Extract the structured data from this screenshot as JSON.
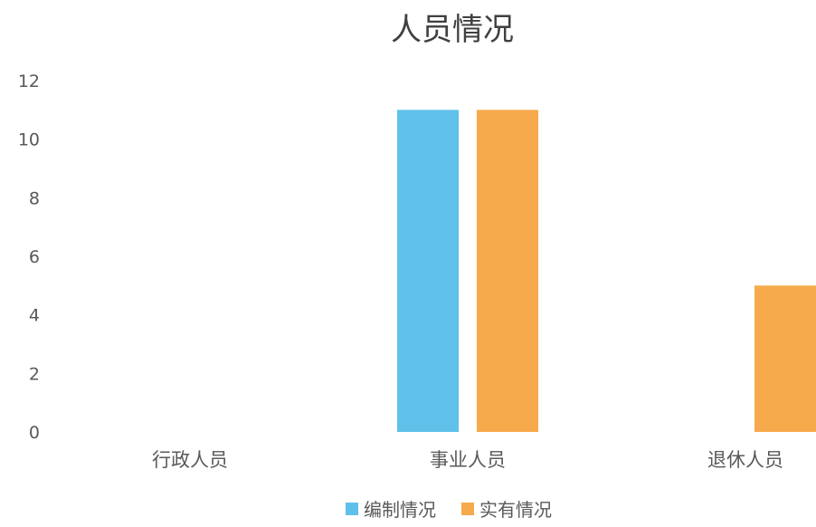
{
  "chart_data": {
    "type": "bar",
    "title": "人员情况",
    "categories": [
      "行政人员",
      "事业人员",
      "退休人员"
    ],
    "series": [
      {
        "name": "编制情况",
        "color": "#5fc1ea",
        "values": [
          0,
          11,
          0
        ]
      },
      {
        "name": "实有情况",
        "color": "#f6aa4c",
        "values": [
          0,
          11,
          5
        ]
      }
    ],
    "yticks": [
      "0",
      "2",
      "4",
      "6",
      "8",
      "10",
      "12"
    ],
    "ylim": [
      0,
      12
    ],
    "grid": false,
    "legend_position": "bottom"
  }
}
